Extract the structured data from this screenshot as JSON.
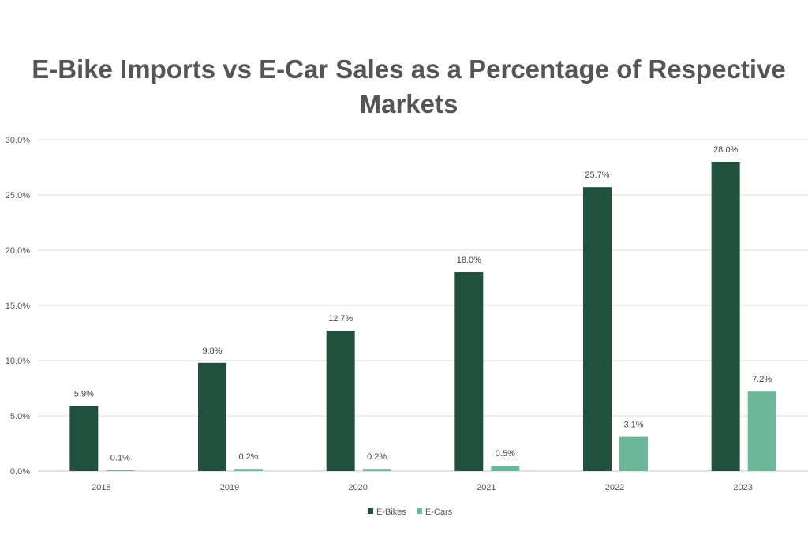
{
  "colors": {
    "ebikes": "#22503f",
    "ecars": "#6db79b",
    "grid": "#dedede",
    "axis": "#c8c8c8"
  },
  "chart_data": {
    "type": "bar",
    "title": "E-Bike Imports vs E-Car Sales as a Percentage of Respective Markets",
    "categories": [
      "2018",
      "2019",
      "2020",
      "2021",
      "2022",
      "2023"
    ],
    "series": [
      {
        "name": "E-Bikes",
        "values": [
          5.9,
          9.8,
          12.7,
          18.0,
          25.7,
          28.0
        ]
      },
      {
        "name": "E-Cars",
        "values": [
          0.1,
          0.2,
          0.2,
          0.5,
          3.1,
          7.2
        ]
      }
    ],
    "ylim": [
      0,
      30
    ],
    "yticks": [
      0,
      5,
      10,
      15,
      20,
      25,
      30
    ],
    "ytick_labels": [
      "0.0%",
      "5.0%",
      "10.0%",
      "15.0%",
      "20.0%",
      "25.0%",
      "30.0%"
    ],
    "data_labels": [
      [
        "5.9%",
        "9.8%",
        "12.7%",
        "18.0%",
        "25.7%",
        "28.0%"
      ],
      [
        "0.1%",
        "0.2%",
        "0.2%",
        "0.5%",
        "3.1%",
        "7.2%"
      ]
    ],
    "grid": true,
    "legend": "bottom"
  }
}
